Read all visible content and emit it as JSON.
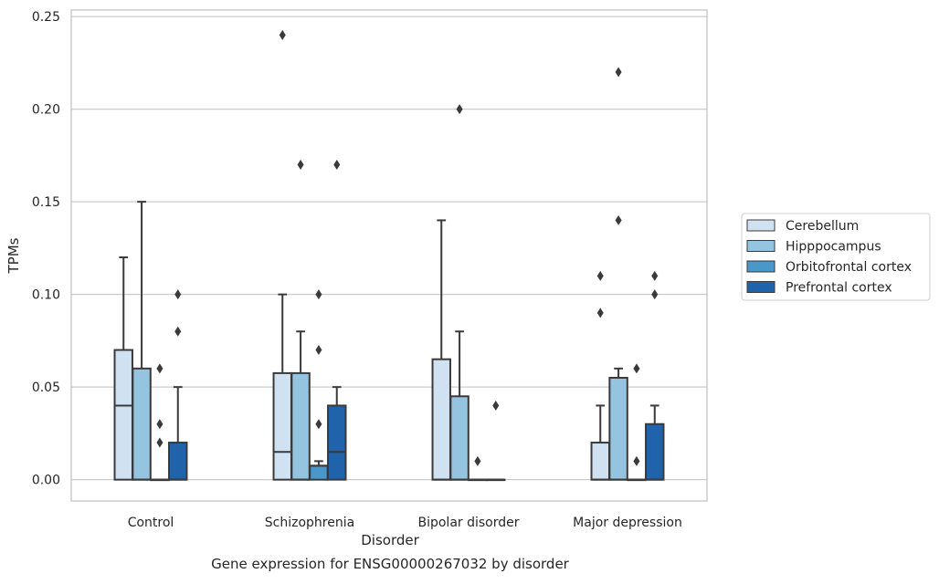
{
  "chart_data": {
    "type": "box",
    "title": "",
    "caption": "Gene expression for ENSG00000267032 by disorder",
    "xlabel": "Disorder",
    "ylabel": "TPMs",
    "ylim": [
      -0.0115,
      0.2535
    ],
    "yticks": [
      "0.00",
      "0.05",
      "0.10",
      "0.15",
      "0.20",
      "0.25"
    ],
    "ytick_values": [
      0.0,
      0.05,
      0.1,
      0.15,
      0.2,
      0.25
    ],
    "grid": true,
    "legend_position": "right",
    "categories": [
      "Control",
      "Schizophrenia",
      "Bipolar disorder",
      "Major depression"
    ],
    "series": [
      {
        "name": "Cerebellum",
        "color": "#d0e1f2",
        "boxes": [
          {
            "q1": 0.0,
            "median": 0.04,
            "q3": 0.07,
            "whisker_low": 0.0,
            "whisker_high": 0.12,
            "outliers": []
          },
          {
            "q1": 0.0,
            "median": 0.015,
            "q3": 0.0575,
            "whisker_low": 0.0,
            "whisker_high": 0.1,
            "outliers": [
              0.24
            ]
          },
          {
            "q1": 0.0,
            "median": 0.0,
            "q3": 0.065,
            "whisker_low": 0.0,
            "whisker_high": 0.14,
            "outliers": []
          },
          {
            "q1": 0.0,
            "median": 0.0,
            "q3": 0.02,
            "whisker_low": 0.0,
            "whisker_high": 0.04,
            "outliers": [
              0.09,
              0.11
            ]
          }
        ]
      },
      {
        "name": "Hipppocampus",
        "color": "#94c4df",
        "boxes": [
          {
            "q1": 0.0,
            "median": 0.0,
            "q3": 0.06,
            "whisker_low": 0.0,
            "whisker_high": 0.15,
            "outliers": []
          },
          {
            "q1": 0.0,
            "median": 0.0,
            "q3": 0.0575,
            "whisker_low": 0.0,
            "whisker_high": 0.08,
            "outliers": [
              0.17
            ]
          },
          {
            "q1": 0.0,
            "median": 0.0,
            "q3": 0.045,
            "whisker_low": 0.0,
            "whisker_high": 0.08,
            "outliers": [
              0.2
            ]
          },
          {
            "q1": 0.0,
            "median": 0.0,
            "q3": 0.055,
            "whisker_low": 0.0,
            "whisker_high": 0.06,
            "outliers": [
              0.14,
              0.22
            ]
          }
        ]
      },
      {
        "name": "Orbitofrontal cortex",
        "color": "#4a98c9",
        "boxes": [
          {
            "q1": 0.0,
            "median": 0.0,
            "q3": 0.0,
            "whisker_low": 0.0,
            "whisker_high": 0.0,
            "outliers": [
              0.02,
              0.03,
              0.06
            ]
          },
          {
            "q1": 0.0,
            "median": 0.0075,
            "q3": 0.0075,
            "whisker_low": 0.0,
            "whisker_high": 0.01,
            "outliers": [
              0.03,
              0.07,
              0.1
            ]
          },
          {
            "q1": 0.0,
            "median": 0.0,
            "q3": 0.0,
            "whisker_low": 0.0,
            "whisker_high": 0.0,
            "outliers": [
              0.01
            ]
          },
          {
            "q1": 0.0,
            "median": 0.0,
            "q3": 0.0,
            "whisker_low": 0.0,
            "whisker_high": 0.0,
            "outliers": [
              0.01,
              0.06
            ]
          }
        ]
      },
      {
        "name": "Prefrontal cortex",
        "color": "#2163aa",
        "boxes": [
          {
            "q1": 0.0,
            "median": 0.0,
            "q3": 0.02,
            "whisker_low": 0.0,
            "whisker_high": 0.05,
            "outliers": [
              0.08,
              0.1
            ]
          },
          {
            "q1": 0.0,
            "median": 0.015,
            "q3": 0.04,
            "whisker_low": 0.0,
            "whisker_high": 0.05,
            "outliers": [
              0.17
            ]
          },
          {
            "q1": 0.0,
            "median": 0.0,
            "q3": 0.0,
            "whisker_low": 0.0,
            "whisker_high": 0.0,
            "outliers": [
              0.04
            ]
          },
          {
            "q1": 0.0,
            "median": 0.0,
            "q3": 0.03,
            "whisker_low": 0.0,
            "whisker_high": 0.04,
            "outliers": [
              0.1,
              0.11
            ]
          }
        ]
      }
    ]
  }
}
